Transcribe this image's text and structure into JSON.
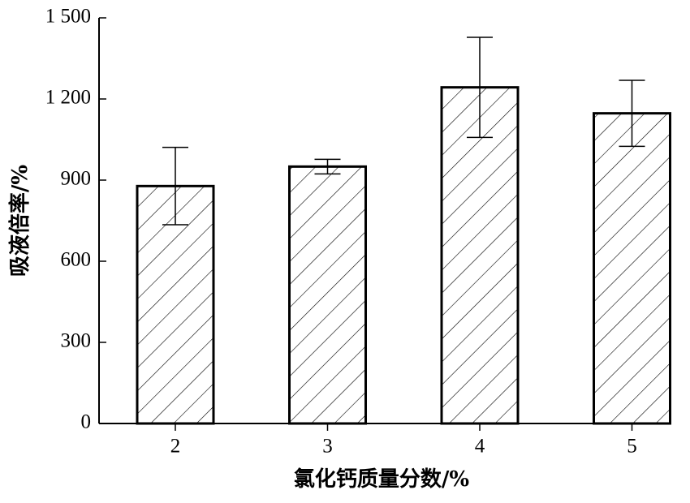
{
  "chart_data": {
    "type": "bar",
    "x_label": "氯化钙质量分数/%",
    "y_label": "吸液倍率/%",
    "categories": [
      "2",
      "3",
      "4",
      "5"
    ],
    "values": [
      878,
      950,
      1243,
      1147
    ],
    "errors": [
      143,
      27,
      185,
      122
    ],
    "ylim": [
      0,
      1500
    ],
    "yticks": [
      0,
      300,
      600,
      900,
      {
        "value": 1200,
        "label": "1 200"
      },
      {
        "value": 1500,
        "label": "1 500"
      }
    ],
    "color": "#ffffff",
    "hatch": "/"
  }
}
